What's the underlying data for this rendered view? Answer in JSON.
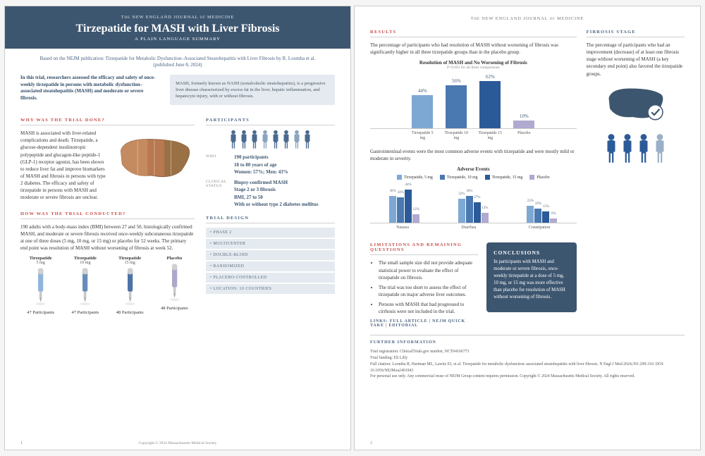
{
  "journal": "The NEW ENGLAND JOURNAL of MEDICINE",
  "title": "Tirzepatide for MASH with Liver Fibrosis",
  "subtitle": "A PLAIN LANGUAGE SUMMARY",
  "based_on": "Based on the NEJM publication: Tirzepatide for Metabolic Dysfunction–Associated Steatohepatitis with Liver Fibrosis by R. Loomba et al. (published June 8, 2024)",
  "intro_left": "In this trial, researchers assessed the efficacy and safety of once-weekly tirzepatide in persons with metabolic dysfunction–associated steatohepatitis (MASH) and moderate or severe fibrosis.",
  "intro_right": "MASH, formerly known as NASH (nonalcoholic steatohepatitis), is a progressive liver disease characterized by excess fat in the liver, hepatic inflammation, and hepatocyte injury, with or without fibrosis.",
  "headings": {
    "why": "WHY WAS THE TRIAL DONE?",
    "how": "HOW WAS THE TRIAL CONDUCTED?",
    "participants": "PARTICIPANTS",
    "design": "TRIAL DESIGN",
    "results": "RESULTS",
    "fibrosis": "FIBROSIS STAGE",
    "limits": "LIMITATIONS AND REMAINING QUESTIONS",
    "conclusions": "CONCLUSIONS",
    "further": "FURTHER INFORMATION"
  },
  "why_text": "MASH is associated with liver-related complications and death. Tirzepatide, a glucose-dependent insulinotropic polypeptide and glucagon-like peptide-1 (GLP-1) receptor agonist, has been shown to reduce liver fat and improve biomarkers of MASH and fibrosis in persons with type 2 diabetes. The efficacy and safety of tirzepatide in persons with MASH and moderate or severe fibrosis are unclear.",
  "how_text": "190 adults with a body-mass index (BMI) between 27 and 50, histologically confirmed MASH, and moderate or severe fibrosis received once-weekly subcutaneous tirzepatide at one of three doses (5 mg, 10 mg, or 15 mg) or placebo for 52 weeks. The primary end point was resolution of MASH without worsening of fibrosis at week 52.",
  "arms": [
    {
      "label": "Tirzepatide",
      "dose": "5 mg",
      "n": "47 Participants",
      "color": "#7ea8d4"
    },
    {
      "label": "Tirzepatide",
      "dose": "10 mg",
      "n": "47 Participants",
      "color": "#4a78b0"
    },
    {
      "label": "Tirzepatide",
      "dose": "15 mg",
      "n": "48 Participants",
      "color": "#2b5a98"
    },
    {
      "label": "Placebo",
      "dose": "",
      "n": "48 Participants",
      "color": "#a098c0"
    }
  ],
  "participants": {
    "who": [
      "190 participants",
      "18 to 80 years of age",
      "Women: 57%; Men: 43%"
    ],
    "clinical": [
      "Biopsy-confirmed MASH",
      "Stage 2 or 3 fibrosis",
      "BMI, 27 to 50",
      "With or without type 2 diabetes mellitus"
    ],
    "labels": {
      "who": "WHO",
      "clinical": "CLINICAL STATUS"
    },
    "icon_colors": [
      "#4a6a90",
      "#4a6a90",
      "#4a6a90",
      "#8aa4c0",
      "#4a6a90",
      "#4a6a90",
      "#8aa4c0",
      "#4a6a90"
    ]
  },
  "design": [
    "• PHASE 2",
    "• MULTICENTER",
    "• DOUBLE-BLIND",
    "• RANDOMIZED",
    "• PLACEBO-CONTROLLED",
    "• LOCATION: 10 COUNTRIES"
  ],
  "results_text": "The percentage of participants who had resolution of MASH without worsening of fibrosis was significantly higher in all three tirzepatide groups than in the placebo group.",
  "results_chart": {
    "title": "Resolution of MASH and No Worsening of Fibrosis",
    "subtitle": "P<0.001 for all three comparisons",
    "ylim": 70,
    "bars": [
      {
        "label": "Tirzepatide 5 mg",
        "value": 44,
        "color": "#7ea8d4"
      },
      {
        "label": "Tirzepatide 10 mg",
        "value": 56,
        "color": "#4a78b0"
      },
      {
        "label": "Tirzepatide 15 mg",
        "value": 62,
        "color": "#2b5a98"
      },
      {
        "label": "Placebo",
        "value": 10,
        "color": "#b0aad0"
      }
    ]
  },
  "ae_text": "Gastrointestinal events were the most common adverse events with tirzepatide and were mostly mild or moderate in severity.",
  "ae_chart": {
    "title": "Adverse Events",
    "ylim": 50,
    "legend": [
      {
        "label": "Tirzepatide, 5 mg",
        "color": "#7ea8d4"
      },
      {
        "label": "Tirzepatide, 10 mg",
        "color": "#4a78b0"
      },
      {
        "label": "Tirzepatide, 15 mg",
        "color": "#2b5a98"
      },
      {
        "label": "Placebo",
        "color": "#b0aad0"
      }
    ],
    "categories": [
      "Nausea",
      "Diarrhea",
      "Constipation"
    ],
    "data": [
      [
        36,
        34,
        44,
        12
      ],
      [
        32,
        36,
        27,
        13
      ],
      [
        23,
        19,
        15,
        6
      ]
    ]
  },
  "fibrosis_text": "The percentage of participants who had an improvement (decrease) of at least one fibrosis stage without worsening of MASH (a key secondary end point) also favored the tirzepatide groups.",
  "fibrosis_people_colors": [
    "#2b5a98",
    "#2b5a98",
    "#2b5a98",
    "#9bb0c8"
  ],
  "limitations": [
    "The small sample size did not provide adequate statistical power to evaluate the effect of tirzepatide on fibrosis.",
    "The trial was too short to assess the effect of tirzepatide on major adverse liver outcomes.",
    "Persons with MASH that had progressed to cirrhosis were not included in the trial."
  ],
  "conclusions_text": "In participants with MASH and moderate or severe fibrosis, once-weekly tirzepatide at a dose of 5 mg, 10 mg, or 15 mg was more effective than placebo for resolution of MASH without worsening of fibrosis.",
  "links": {
    "prefix": "LINKS:",
    "items": "FULL ARTICLE | NEJM QUICK TAKE | EDITORIAL"
  },
  "further": [
    "Trial registration: ClinicalTrials.gov number, NCT04166773",
    "Trial funding: Eli Lilly",
    "Full citation: Loomba R, Hartman ML, Lawitz EJ, et al. Tirzepatide for metabolic dysfunction–associated steatohepatitis with liver fibrosis. N Engl J Med 2024;391:299-310. DOI: 10.1056/NEJMoa2401943",
    "For personal use only. Any commercial reuse of NEJM Group content requires permission. Copyright © 2024 Massachusetts Medical Society. All rights reserved."
  ],
  "copyright": "Copyright © 2024 Massachusetts Medical Society",
  "pages": {
    "p1": "1",
    "p2": "2"
  }
}
